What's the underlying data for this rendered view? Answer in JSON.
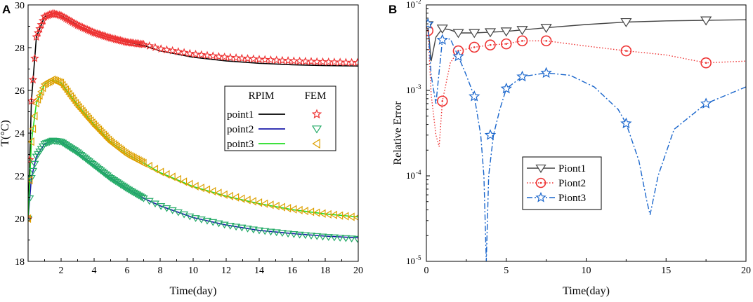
{
  "chart_data": [
    {
      "panel": "A",
      "type": "line",
      "title": "",
      "xlabel": "Time(day)",
      "ylabel": "T(°C)",
      "xlim": [
        0,
        20
      ],
      "ylim": [
        18,
        30
      ],
      "xticks": [
        2,
        4,
        6,
        8,
        10,
        12,
        14,
        16,
        18,
        20
      ],
      "yticks": [
        18,
        20,
        22,
        24,
        26,
        28,
        30
      ],
      "legend": {
        "position": "center-right",
        "header_left": "RPIM",
        "header_right": "FEM",
        "rows": [
          "point1",
          "point2",
          "point3"
        ]
      },
      "series": [
        {
          "name": "point1",
          "method": "RPIM",
          "color": "#000000",
          "x": [
            0,
            0.2,
            0.5,
            1,
            1.5,
            2,
            3,
            4,
            5,
            6,
            7,
            8,
            10,
            12,
            14,
            16,
            18,
            20
          ],
          "values": [
            20,
            25.5,
            28.5,
            29.45,
            29.6,
            29.5,
            29.05,
            28.7,
            28.45,
            28.25,
            28.1,
            27.85,
            27.55,
            27.38,
            27.27,
            27.2,
            27.16,
            27.14
          ]
        },
        {
          "name": "point2",
          "method": "RPIM",
          "color": "#1a1aaa",
          "x": [
            0,
            0.2,
            0.5,
            1,
            1.5,
            2,
            3,
            4,
            5,
            6,
            7,
            8,
            10,
            12,
            14,
            16,
            18,
            20
          ],
          "values": [
            20,
            21.9,
            22.9,
            23.5,
            23.65,
            23.6,
            23.1,
            22.5,
            21.9,
            21.4,
            20.95,
            20.6,
            20.05,
            19.7,
            19.45,
            19.3,
            19.18,
            19.1
          ]
        },
        {
          "name": "point3",
          "method": "RPIM",
          "color": "#22dd22",
          "x": [
            0,
            0.2,
            0.5,
            1,
            1.5,
            2,
            3,
            4,
            5,
            6,
            7,
            8,
            10,
            12,
            14,
            16,
            18,
            20
          ],
          "values": [
            20,
            23.6,
            25.4,
            26.3,
            26.5,
            26.35,
            25.3,
            24.4,
            23.6,
            23.0,
            22.6,
            22.15,
            21.5,
            21.05,
            20.7,
            20.42,
            20.22,
            20.08
          ]
        },
        {
          "name": "point1",
          "method": "FEM",
          "color": "#ee3333",
          "marker": "star",
          "x": [
            0,
            0.2,
            0.5,
            1,
            1.5,
            2,
            3,
            4,
            5,
            6,
            7,
            8,
            10,
            12,
            14,
            16,
            18,
            20
          ],
          "values": [
            20,
            25.5,
            28.5,
            29.45,
            29.6,
            29.5,
            29.05,
            28.7,
            28.45,
            28.25,
            28.15,
            27.95,
            27.7,
            27.55,
            27.45,
            27.38,
            27.33,
            27.3
          ]
        },
        {
          "name": "point2",
          "method": "FEM",
          "color": "#22aa66",
          "marker": "triangle-down",
          "x": [
            0,
            0.2,
            0.5,
            1,
            1.5,
            2,
            3,
            4,
            5,
            6,
            7,
            8,
            10,
            12,
            14,
            16,
            18,
            20
          ],
          "values": [
            20,
            21.9,
            22.9,
            23.5,
            23.65,
            23.6,
            23.1,
            22.5,
            21.9,
            21.4,
            20.95,
            20.6,
            20.05,
            19.7,
            19.45,
            19.28,
            19.15,
            19.05
          ]
        },
        {
          "name": "point3",
          "method": "FEM",
          "color": "#dda000",
          "marker": "triangle-left",
          "x": [
            0,
            0.2,
            0.5,
            1,
            1.5,
            2,
            3,
            4,
            5,
            6,
            7,
            8,
            10,
            12,
            14,
            16,
            18,
            20
          ],
          "values": [
            20,
            23.6,
            25.4,
            26.3,
            26.5,
            26.35,
            25.3,
            24.4,
            23.6,
            23.0,
            22.6,
            22.2,
            21.55,
            21.1,
            20.75,
            20.45,
            20.22,
            20.05
          ]
        }
      ]
    },
    {
      "panel": "B",
      "type": "line",
      "title": "",
      "xlabel": "Time(day)",
      "ylabel": "Relative Error",
      "yscale": "log",
      "xlim": [
        0,
        20
      ],
      "ylim": [
        1e-05,
        0.01
      ],
      "xticks": [
        0,
        5,
        10,
        15,
        20
      ],
      "yticks": [
        1e-05,
        0.0001,
        0.001,
        0.01
      ],
      "ytick_labels": [
        {
          "base": "10",
          "exp": "-5"
        },
        {
          "base": "10",
          "exp": "-4"
        },
        {
          "base": "10",
          "exp": "-3"
        },
        {
          "base": "10",
          "exp": "-2"
        }
      ],
      "legend": {
        "position": "center",
        "entries": [
          "Piont1",
          "Piont2",
          "Piont3"
        ]
      },
      "series": [
        {
          "name": "Piont1",
          "color": "#444444",
          "line": "solid",
          "marker": "triangle-down",
          "x": [
            0,
            0.1,
            0.3,
            0.6,
            1,
            1.5,
            2,
            3,
            4,
            5,
            6,
            7.5,
            10,
            12.5,
            15,
            17.5,
            20
          ],
          "values": [
            0.0062,
            0.0058,
            0.0022,
            0.0042,
            0.0053,
            0.0051,
            0.0047,
            0.0047,
            0.0048,
            0.0049,
            0.0051,
            0.0054,
            0.0059,
            0.0063,
            0.0065,
            0.0066,
            0.0067
          ],
          "marker_x": [
            0.1,
            1,
            2,
            3,
            4,
            5,
            6,
            7.5,
            12.5,
            17.5
          ],
          "marker_values": [
            0.0058,
            0.0053,
            0.0047,
            0.0047,
            0.0048,
            0.0049,
            0.0051,
            0.0054,
            0.0063,
            0.0066
          ]
        },
        {
          "name": "Piont2",
          "color": "#ee3333",
          "line": "dotted",
          "marker": "circle",
          "x": [
            0,
            0.1,
            0.3,
            0.6,
            0.8,
            1,
            1.5,
            2,
            3,
            4,
            5,
            6,
            7.5,
            10,
            12.5,
            15,
            17.5,
            20
          ],
          "values": [
            0.0055,
            0.005,
            0.0009,
            0.0003,
            0.00022,
            0.00075,
            0.0021,
            0.0029,
            0.0032,
            0.0034,
            0.0035,
            0.0038,
            0.0038,
            0.0033,
            0.0029,
            0.0026,
            0.0021,
            0.0022
          ],
          "marker_x": [
            0.1,
            1,
            2,
            3,
            4,
            5,
            6,
            7.5,
            12.5,
            17.5
          ],
          "marker_values": [
            0.005,
            0.00075,
            0.0029,
            0.0032,
            0.0034,
            0.0035,
            0.0038,
            0.0038,
            0.0029,
            0.0021
          ]
        },
        {
          "name": "Piont3",
          "color": "#1a66cc",
          "line": "dashdot",
          "marker": "star",
          "x": [
            0,
            0.1,
            0.3,
            0.6,
            1,
            1.5,
            2,
            2.5,
            3,
            3.4,
            3.6,
            3.75,
            3.9,
            4.2,
            4.6,
            5,
            6,
            7.5,
            9,
            10.5,
            12,
            12.5,
            13.3,
            13.8,
            14,
            14.5,
            15.5,
            17.5,
            20
          ],
          "values": [
            0.0064,
            0.006,
            0.0015,
            0.0007,
            0.0039,
            0.004,
            0.0025,
            0.0015,
            0.00085,
            0.0003,
            0.0001,
            1e-05,
            0.0001,
            0.0003,
            0.0006,
            0.00105,
            0.00145,
            0.0016,
            0.0015,
            0.0011,
            0.0006,
            0.00041,
            0.00015,
            5e-05,
            3.5e-05,
            0.0001,
            0.00035,
            0.0007,
            0.0011
          ],
          "marker_x": [
            0.1,
            1,
            2,
            3,
            4,
            5,
            6,
            7.5,
            12.5,
            17.5
          ],
          "marker_values": [
            0.006,
            0.0039,
            0.0025,
            0.00085,
            0.0003,
            0.00105,
            0.00145,
            0.0016,
            0.00041,
            0.0007
          ]
        }
      ]
    }
  ],
  "panels": {
    "a_label": "A",
    "b_label": "B"
  }
}
